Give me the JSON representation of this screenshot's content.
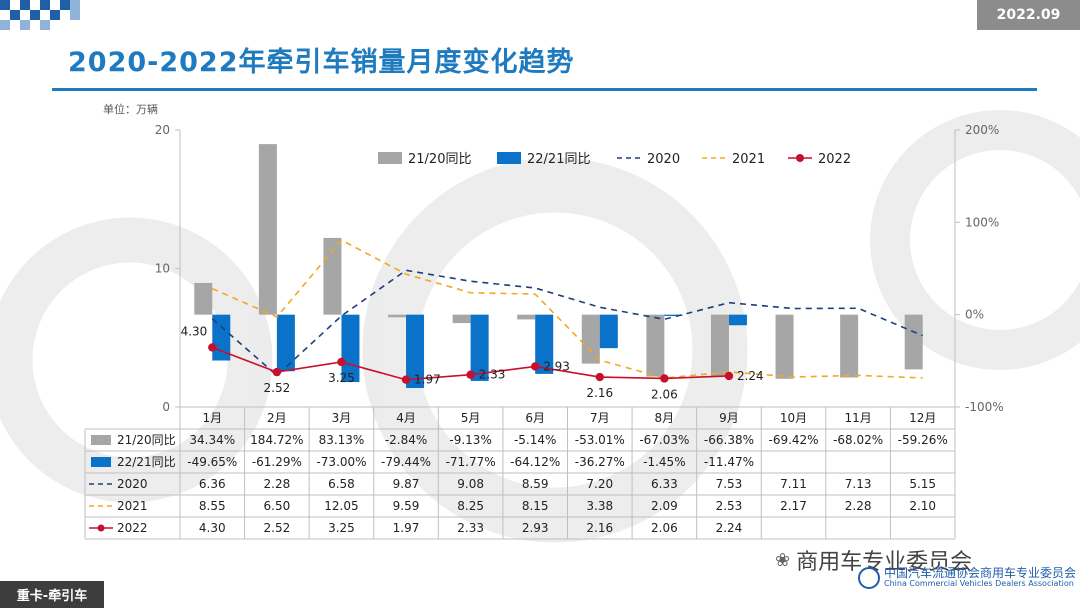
{
  "header": {
    "date_badge": "2022.09",
    "title": "2020-2022年牵引车销量月度变化趋势",
    "unit": "单位：万辆"
  },
  "footer": {
    "category": "重卡-牵引车",
    "wechat_name": "商用车专业委员会",
    "association_cn": "中国汽车流通协会商用车专业委员会",
    "association_en": "China Commercial Vehicles Dealers Association"
  },
  "colors": {
    "title_blue": "#1f7bbf",
    "yoy_2120": "#a6a6a6",
    "yoy_2221": "#0a72c8",
    "line_2020": "#1f3f7a",
    "line_2021": "#f5a623",
    "line_2022": "#c8102e"
  },
  "chart_data": {
    "type": "bar+line",
    "title": "2020-2022年牵引车销量月度变化趋势",
    "ylabel": "单位：万辆",
    "left_axis": {
      "ylim": [
        0,
        20
      ],
      "ticks": [
        "0",
        "10",
        "20"
      ]
    },
    "right_axis": {
      "ylim": [
        -100,
        200
      ],
      "ticks": [
        "-100%",
        "0%",
        "100%",
        "200%"
      ]
    },
    "categories": [
      "1月",
      "2月",
      "3月",
      "4月",
      "5月",
      "6月",
      "7月",
      "8月",
      "9月",
      "10月",
      "11月",
      "12月"
    ],
    "legend_position": "top-center",
    "bar_series": [
      {
        "name": "21/20同比",
        "axis": "right",
        "values": [
          34.34,
          184.72,
          83.13,
          -2.84,
          -9.13,
          -5.14,
          -53.01,
          -67.03,
          -66.38,
          -69.42,
          -68.02,
          -59.26
        ],
        "labels": [
          "34.34%",
          "184.72%",
          "83.13%",
          "-2.84%",
          "-9.13%",
          "-5.14%",
          "-53.01%",
          "-67.03%",
          "-66.38%",
          "-69.42%",
          "-68.02%",
          "-59.26%"
        ]
      },
      {
        "name": "22/21同比",
        "axis": "right",
        "values": [
          -49.65,
          -61.29,
          -73.0,
          -79.44,
          -71.77,
          -64.12,
          -36.27,
          -1.45,
          -11.47,
          null,
          null,
          null
        ],
        "labels": [
          "-49.65%",
          "-61.29%",
          "-73.00%",
          "-79.44%",
          "-71.77%",
          "-64.12%",
          "-36.27%",
          "-1.45%",
          "-11.47%",
          "",
          "",
          ""
        ]
      }
    ],
    "line_series": [
      {
        "name": "2020",
        "axis": "left",
        "style": "dashed",
        "values": [
          6.36,
          2.28,
          6.58,
          9.87,
          9.08,
          8.59,
          7.2,
          6.33,
          7.53,
          7.11,
          7.13,
          5.15
        ],
        "labels": [
          "6.36",
          "2.28",
          "6.58",
          "9.87",
          "9.08",
          "8.59",
          "7.20",
          "6.33",
          "7.53",
          "7.11",
          "7.13",
          "5.15"
        ]
      },
      {
        "name": "2021",
        "axis": "left",
        "style": "dashed",
        "values": [
          8.55,
          6.5,
          12.05,
          9.59,
          8.25,
          8.15,
          3.38,
          2.09,
          2.53,
          2.17,
          2.28,
          2.1
        ],
        "labels": [
          "8.55",
          "6.50",
          "12.05",
          "9.59",
          "8.25",
          "8.15",
          "3.38",
          "2.09",
          "2.53",
          "2.17",
          "2.28",
          "2.10"
        ]
      },
      {
        "name": "2022",
        "axis": "left",
        "style": "solid-markers",
        "values": [
          4.3,
          2.52,
          3.25,
          1.97,
          2.33,
          2.93,
          2.16,
          2.06,
          2.24,
          null,
          null,
          null
        ],
        "labels": [
          "4.30",
          "2.52",
          "3.25",
          "1.97",
          "2.33",
          "2.93",
          "2.16",
          "2.06",
          "2.24",
          "",
          "",
          ""
        ]
      }
    ],
    "data_table": true
  }
}
